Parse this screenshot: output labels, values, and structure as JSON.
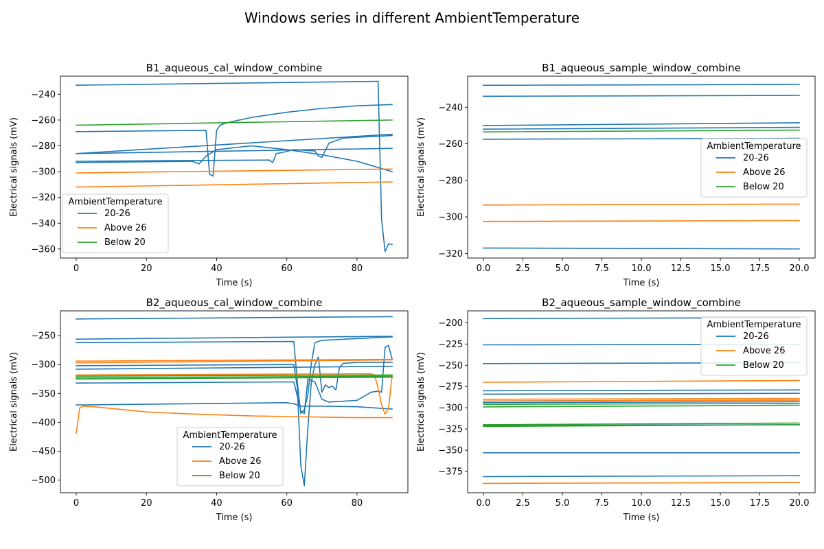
{
  "figure_title": "Windows series in different AmbientTemperature",
  "colors": {
    "20-26": "#1f77b4",
    "Above 26": "#ff7f0e",
    "Below 20": "#2ca02c"
  },
  "chart_data": [
    {
      "type": "line",
      "title": "B1_aqueous_cal_window_combine",
      "xlabel": "Time (s)",
      "ylabel": "Electrical signals (mV)",
      "xlim": [
        -4.5,
        94.5
      ],
      "ylim": [
        -367,
        -226
      ],
      "xticks": [
        0,
        20,
        40,
        60,
        80
      ],
      "yticks": [
        -360,
        -340,
        -320,
        -300,
        -280,
        -260,
        -240
      ],
      "legend": {
        "title": "AmbientTemperature",
        "position": "lower-left",
        "entries": [
          "20-26",
          "Above 26",
          "Below 20"
        ]
      },
      "series": [
        {
          "group": "20-26",
          "points": [
            [
              0,
              -233
            ],
            [
              86,
              -230
            ],
            [
              87,
              -337
            ],
            [
              88,
              -362
            ],
            [
              89,
              -356
            ],
            [
              90,
              -356.5
            ]
          ]
        },
        {
          "group": "20-26",
          "points": [
            [
              0,
              -269
            ],
            [
              37,
              -268
            ],
            [
              38,
              -302
            ],
            [
              39,
              -303.5
            ],
            [
              40,
              -268
            ],
            [
              41,
              -264
            ],
            [
              43,
              -262
            ],
            [
              50,
              -258
            ],
            [
              60,
              -254
            ],
            [
              70,
              -251
            ],
            [
              80,
              -249
            ],
            [
              90,
              -248
            ]
          ]
        },
        {
          "group": "20-26",
          "points": [
            [
              0,
              -286
            ],
            [
              90,
              -282
            ]
          ]
        },
        {
          "group": "20-26",
          "points": [
            [
              0,
              -286
            ],
            [
              90,
              -271
            ]
          ]
        },
        {
          "group": "20-26",
          "points": [
            [
              0,
              -293
            ],
            [
              33,
              -292
            ],
            [
              35,
              -294
            ],
            [
              37,
              -288
            ],
            [
              40,
              -283
            ],
            [
              50,
              -280
            ],
            [
              60,
              -283
            ],
            [
              70,
              -287
            ],
            [
              80,
              -292
            ],
            [
              90,
              -300
            ]
          ]
        },
        {
          "group": "20-26",
          "points": [
            [
              0,
              -292
            ],
            [
              55,
              -291
            ],
            [
              56,
              -293
            ],
            [
              57,
              -286
            ],
            [
              59,
              -285
            ],
            [
              62,
              -283
            ],
            [
              68,
              -284
            ],
            [
              69,
              -288
            ],
            [
              70,
              -289
            ],
            [
              72,
              -278
            ],
            [
              76,
              -274
            ],
            [
              90,
              -272
            ]
          ]
        },
        {
          "group": "Above 26",
          "points": [
            [
              0,
              -301
            ],
            [
              90,
              -298
            ]
          ]
        },
        {
          "group": "Above 26",
          "points": [
            [
              0,
              -312
            ],
            [
              90,
              -308
            ]
          ]
        },
        {
          "group": "Below 20",
          "points": [
            [
              0,
              -264
            ],
            [
              90,
              -260
            ]
          ]
        }
      ]
    },
    {
      "type": "line",
      "title": "B1_aqueous_sample_window_combine",
      "xlabel": "Time (s)",
      "ylabel": "Electrical signals (mV)",
      "xlim": [
        -1,
        21
      ],
      "ylim": [
        -322.5,
        -223
      ],
      "xticks": [
        0.0,
        2.5,
        5.0,
        7.5,
        10.0,
        12.5,
        15.0,
        17.5,
        20.0
      ],
      "yticks": [
        -320,
        -300,
        -280,
        -260,
        -240
      ],
      "legend": {
        "title": "AmbientTemperature",
        "position": "center-right",
        "entries": [
          "20-26",
          "Above 26",
          "Below 20"
        ]
      },
      "series": [
        {
          "group": "20-26",
          "points": [
            [
              0,
              -228
            ],
            [
              20,
              -227.5
            ]
          ]
        },
        {
          "group": "20-26",
          "points": [
            [
              0,
              -234
            ],
            [
              20,
              -233.5
            ]
          ]
        },
        {
          "group": "20-26",
          "points": [
            [
              0,
              -250
            ],
            [
              20,
              -248.5
            ]
          ]
        },
        {
          "group": "20-26",
          "points": [
            [
              0,
              -252
            ],
            [
              20,
              -251
            ]
          ]
        },
        {
          "group": "20-26",
          "points": [
            [
              0,
              -257.5
            ],
            [
              20,
              -257
            ]
          ]
        },
        {
          "group": "20-26",
          "points": [
            [
              0,
              -317
            ],
            [
              20,
              -317.5
            ]
          ]
        },
        {
          "group": "Above 26",
          "points": [
            [
              0,
              -293.5
            ],
            [
              20,
              -293
            ]
          ]
        },
        {
          "group": "Above 26",
          "points": [
            [
              0,
              -302.5
            ],
            [
              20,
              -302
            ]
          ]
        },
        {
          "group": "Below 20",
          "points": [
            [
              0,
              -253.5
            ],
            [
              20,
              -252.5
            ]
          ]
        }
      ]
    },
    {
      "type": "line",
      "title": "B2_aqueous_cal_window_combine",
      "xlabel": "Time (s)",
      "ylabel": "Electrical signals (mV)",
      "xlim": [
        -4.5,
        94.5
      ],
      "ylim": [
        -522,
        -207
      ],
      "xticks": [
        0,
        20,
        40,
        60,
        80
      ],
      "yticks": [
        -500,
        -450,
        -400,
        -350,
        -300,
        -250
      ],
      "legend": {
        "title": "AmbientTemperature",
        "position": "lower-center",
        "entries": [
          "20-26",
          "Above 26",
          "Below 20"
        ]
      },
      "series": [
        {
          "group": "20-26",
          "points": [
            [
              0,
              -221
            ],
            [
              90,
              -217
            ]
          ]
        },
        {
          "group": "20-26",
          "points": [
            [
              0,
              -256
            ],
            [
              90,
              -251
            ]
          ]
        },
        {
          "group": "20-26",
          "points": [
            [
              0,
              -262
            ],
            [
              62,
              -260
            ],
            [
              63,
              -330
            ],
            [
              64,
              -385
            ],
            [
              65,
              -378
            ],
            [
              66,
              -352
            ],
            [
              67,
              -298
            ],
            [
              68,
              -262
            ],
            [
              70,
              -258
            ],
            [
              90,
              -252
            ]
          ]
        },
        {
          "group": "20-26",
          "points": [
            [
              0,
              -302
            ],
            [
              62,
              -300
            ],
            [
              63,
              -340
            ],
            [
              64,
              -475
            ],
            [
              65,
              -510
            ],
            [
              66,
              -410
            ],
            [
              67,
              -330
            ],
            [
              68,
              -300
            ],
            [
              69,
              -287
            ],
            [
              70,
              -348
            ],
            [
              71,
              -335
            ],
            [
              72,
              -340
            ],
            [
              73,
              -337
            ],
            [
              74,
              -344
            ],
            [
              75,
              -305
            ],
            [
              76,
              -298
            ],
            [
              80,
              -296
            ],
            [
              90,
              -296
            ]
          ]
        },
        {
          "group": "20-26",
          "points": [
            [
              0,
              -308
            ],
            [
              90,
              -303
            ]
          ]
        },
        {
          "group": "20-26",
          "points": [
            [
              0,
              -332
            ],
            [
              62,
              -330
            ],
            [
              64,
              -380
            ],
            [
              65,
              -385
            ],
            [
              66,
              -325
            ],
            [
              68,
              -330
            ],
            [
              70,
              -360
            ],
            [
              72,
              -365
            ],
            [
              80,
              -362
            ],
            [
              84,
              -348
            ],
            [
              86,
              -346
            ],
            [
              87,
              -348
            ],
            [
              88,
              -270
            ],
            [
              89,
              -267
            ],
            [
              90,
              -290
            ]
          ]
        },
        {
          "group": "20-26",
          "points": [
            [
              0,
              -370
            ],
            [
              60,
              -366
            ],
            [
              62,
              -368
            ],
            [
              64,
              -372
            ],
            [
              70,
              -372
            ],
            [
              80,
              -373
            ],
            [
              90,
              -377
            ]
          ]
        },
        {
          "group": "Above 26",
          "points": [
            [
              0,
              -294
            ],
            [
              90,
              -291
            ]
          ]
        },
        {
          "group": "Above 26",
          "points": [
            [
              0,
              -297
            ],
            [
              90,
              -292
            ]
          ]
        },
        {
          "group": "Above 26",
          "points": [
            [
              0,
              -318
            ],
            [
              84,
              -316
            ],
            [
              85,
              -318
            ],
            [
              86,
              -340
            ],
            [
              87,
              -370
            ],
            [
              88,
              -386
            ],
            [
              89,
              -375
            ],
            [
              90,
              -320
            ]
          ]
        },
        {
          "group": "Above 26",
          "points": [
            [
              0,
              -419
            ],
            [
              1,
              -375
            ],
            [
              2,
              -372
            ],
            [
              5,
              -373
            ],
            [
              10,
              -376
            ],
            [
              20,
              -382
            ],
            [
              30,
              -385
            ],
            [
              40,
              -387
            ],
            [
              50,
              -389
            ],
            [
              60,
              -390
            ],
            [
              70,
              -391
            ],
            [
              80,
              -392
            ],
            [
              90,
              -392
            ]
          ]
        },
        {
          "group": "Below 20",
          "points": [
            [
              0,
              -320
            ],
            [
              90,
              -318
            ]
          ]
        },
        {
          "group": "Below 20",
          "points": [
            [
              0,
              -323
            ],
            [
              90,
              -320
            ]
          ]
        },
        {
          "group": "Below 20",
          "points": [
            [
              0,
              -325
            ],
            [
              90,
              -322
            ]
          ]
        }
      ]
    },
    {
      "type": "line",
      "title": "B2_aqueous_sample_window_combine",
      "xlabel": "Time (s)",
      "ylabel": "Electrical signals (mV)",
      "xlim": [
        -1,
        21
      ],
      "ylim": [
        -400,
        -186
      ],
      "xticks": [
        0.0,
        2.5,
        5.0,
        7.5,
        10.0,
        12.5,
        15.0,
        17.5,
        20.0
      ],
      "yticks": [
        -375,
        -350,
        -325,
        -300,
        -275,
        -250,
        -225,
        -200
      ],
      "legend": {
        "title": "AmbientTemperature",
        "position": "upper-right",
        "entries": [
          "20-26",
          "Above 26",
          "Below 20"
        ]
      },
      "series": [
        {
          "group": "20-26",
          "points": [
            [
              0,
              -195
            ],
            [
              20,
              -194
            ]
          ]
        },
        {
          "group": "20-26",
          "points": [
            [
              0,
              -226
            ],
            [
              20,
              -225.5
            ]
          ]
        },
        {
          "group": "20-26",
          "points": [
            [
              0,
              -248
            ],
            [
              20,
              -247
            ]
          ]
        },
        {
          "group": "20-26",
          "points": [
            [
              0,
              -280
            ],
            [
              20,
              -279
            ]
          ]
        },
        {
          "group": "20-26",
          "points": [
            [
              0,
              -284
            ],
            [
              20,
              -283
            ]
          ]
        },
        {
          "group": "20-26",
          "points": [
            [
              0,
              -292
            ],
            [
              20,
              -291
            ]
          ]
        },
        {
          "group": "20-26",
          "points": [
            [
              0,
              -294
            ],
            [
              20,
              -293
            ]
          ]
        },
        {
          "group": "20-26",
          "points": [
            [
              0,
              -321
            ],
            [
              20,
              -320
            ]
          ]
        },
        {
          "group": "20-26",
          "points": [
            [
              0,
              -353
            ],
            [
              20,
              -353
            ]
          ]
        },
        {
          "group": "20-26",
          "points": [
            [
              0,
              -381
            ],
            [
              20,
              -380
            ]
          ]
        },
        {
          "group": "Above 26",
          "points": [
            [
              0,
              -270
            ],
            [
              20,
              -268
            ]
          ]
        },
        {
          "group": "Above 26",
          "points": [
            [
              0,
              -290
            ],
            [
              20,
              -289
            ]
          ]
        },
        {
          "group": "Above 26",
          "points": [
            [
              0,
              -292
            ],
            [
              20,
              -291
            ]
          ]
        },
        {
          "group": "Above 26",
          "points": [
            [
              0,
              -389
            ],
            [
              20,
              -388
            ]
          ]
        },
        {
          "group": "Below 20",
          "points": [
            [
              0,
              -296
            ],
            [
              20,
              -295
            ]
          ]
        },
        {
          "group": "Below 20",
          "points": [
            [
              0,
              -299
            ],
            [
              20,
              -297
            ]
          ]
        },
        {
          "group": "Below 20",
          "points": [
            [
              0,
              -320
            ],
            [
              20,
              -318
            ]
          ]
        },
        {
          "group": "Below 20",
          "points": [
            [
              0,
              -322
            ],
            [
              20,
              -320
            ]
          ]
        }
      ]
    }
  ]
}
